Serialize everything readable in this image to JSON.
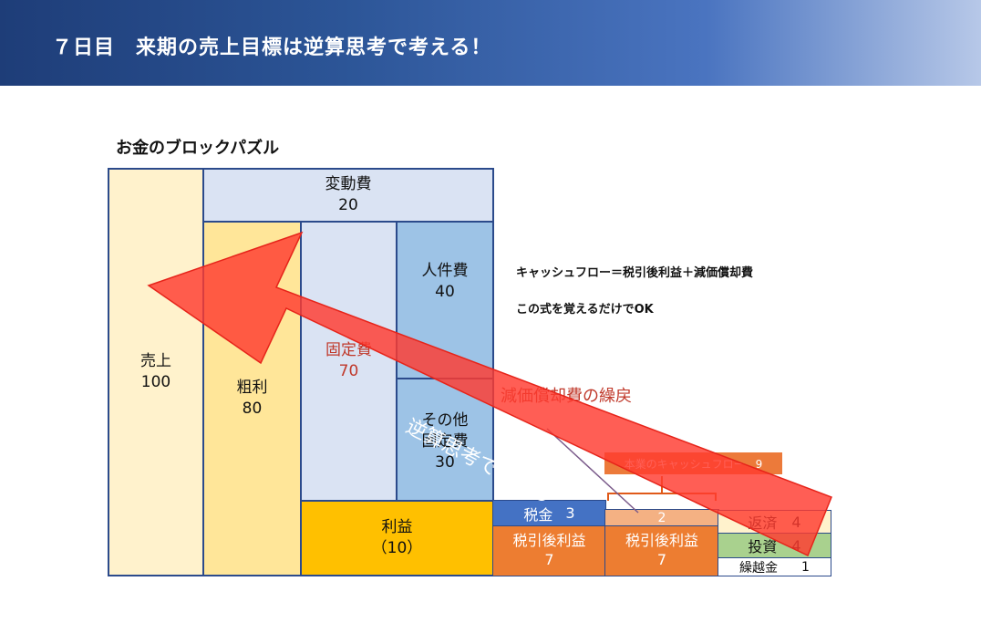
{
  "header": {
    "title": "７日目　来期の売上目標は逆算思考で考える！"
  },
  "puzzle": {
    "title": "お金のブロックパズル",
    "sales": {
      "label": "売上",
      "value": "100"
    },
    "variable_cost": {
      "label": "変動費",
      "value": "20"
    },
    "gross_profit": {
      "label": "粗利",
      "value": "80"
    },
    "fixed_cost": {
      "label": "固定費",
      "value": "70"
    },
    "labor_cost": {
      "label": "人件費",
      "value": "40"
    },
    "other_fixed": {
      "label": "その他\n固定費",
      "value": "30"
    },
    "profit": {
      "label": "利益",
      "value": "（10）"
    },
    "tax": {
      "label": "税金",
      "value": "3"
    },
    "after_tax_1": {
      "label": "税引後利益",
      "value": "7"
    },
    "after_tax_2": {
      "label": "税引後利益",
      "value": "7"
    },
    "depreciation_small": {
      "value": "2"
    },
    "repayment": {
      "label": "返済",
      "value": "4"
    },
    "investment": {
      "label": "投資",
      "value": "4"
    },
    "carryover": {
      "label": "繰越金",
      "value": "1"
    }
  },
  "notes": {
    "cashflow_formula": "キャッシュフロー＝税引後利益＋減価償却費",
    "memorize": "この式を覚えるだけでOK",
    "depreciation_addback": "減価償却費の繰戻",
    "operating_cf": "本業のキャッシュフロー　9"
  },
  "arrow": {
    "label": "逆算思考で考える"
  },
  "colors": {
    "sales": "#fff2cc",
    "variable_cost": "#dae3f3",
    "gross_profit": "#ffe699",
    "fixed_cost": "#dae3f3",
    "labor_cost": "#9dc3e6",
    "profit": "#ffc000",
    "tax": "#4472c4",
    "after_tax": "#ed7d31",
    "investment": "#a9d18e",
    "arrow": "#ff3b30",
    "border": "#2b4a8b"
  }
}
